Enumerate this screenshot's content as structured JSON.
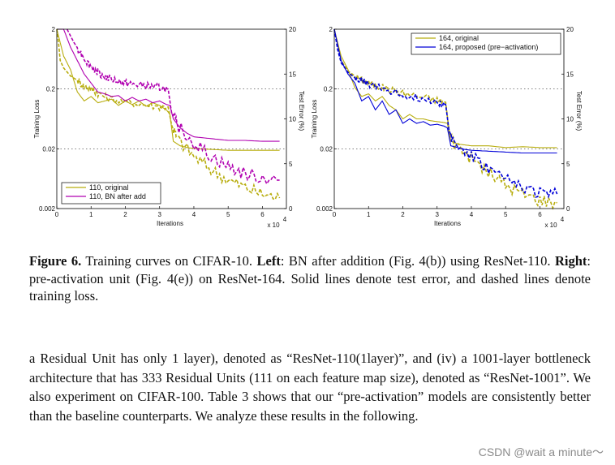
{
  "figure": {
    "caption": {
      "label": "Figure 6.",
      "part1": " Training curves on CIFAR-10. ",
      "left_label": "Left",
      "part2": ": BN after addition (Fig. 4(b)) using ResNet-110. ",
      "right_label": "Right",
      "part3": ": pre-activation unit (Fig. 4(e)) on ResNet-164. Solid lines denote test error, and dashed lines denote training loss."
    }
  },
  "body": {
    "paragraph": "a Residual Unit has only 1 layer), denoted as “ResNet-110(1layer)”, and (iv) a 1001-layer bottleneck architecture that has 333 Residual Units (111 on each feature map size), denoted as “ResNet-1001”. We also experiment on CIFAR-100. Table 3 shows that our “pre-activation” models are consistently better than the baseline counterparts. We analyze these results in the following."
  },
  "watermark": "CSDN @wait a minute～",
  "colors": {
    "original": "#b8ad0e",
    "bn_after_add": "#b000b0",
    "proposed": "#0000d8"
  },
  "chart_data": [
    {
      "type": "line",
      "xlabel": "Iterations",
      "x_multiplier": "x 10",
      "x_multiplier_exp": "4",
      "ylabel_left": "Training Loss",
      "ylabel_right": "Test Error (%)",
      "x_ticks": [
        "0",
        "1",
        "2",
        "3",
        "4",
        "5",
        "6"
      ],
      "xlim": [
        0,
        6.7
      ],
      "y_left_ticks": [
        "2",
        "0.2",
        "0.02",
        "0.002"
      ],
      "y_left_log_range": [
        0.002,
        2
      ],
      "y_right_ticks": [
        "0",
        "5",
        "10",
        "15",
        "20"
      ],
      "ylim_right": [
        0,
        20
      ],
      "grid": "dotted horizontal at 0.2, 0.02",
      "legend": {
        "position": "bottom-left",
        "entries": [
          "110, original",
          "110, BN after add"
        ]
      },
      "series": [
        {
          "name": "110, original",
          "color": "#b8ad0e",
          "kind": "test_error",
          "x": [
            0.0,
            0.2,
            0.4,
            0.6,
            0.8,
            1.0,
            1.2,
            1.4,
            1.6,
            1.8,
            2.0,
            2.2,
            2.4,
            2.6,
            2.8,
            3.0,
            3.2,
            3.3,
            3.4,
            3.6,
            3.8,
            4.0,
            4.5,
            5.0,
            5.5,
            6.0,
            6.5
          ],
          "y": [
            20.0,
            17.0,
            15.5,
            13.0,
            12.0,
            12.5,
            11.8,
            12.0,
            12.2,
            11.5,
            12.0,
            11.6,
            12.0,
            11.4,
            11.8,
            11.5,
            11.0,
            10.5,
            7.5,
            7.0,
            6.8,
            6.7,
            6.6,
            6.5,
            6.5,
            6.5,
            6.5
          ]
        },
        {
          "name": "110, original",
          "color": "#b8ad0e",
          "kind": "training_loss",
          "x": [
            0.0,
            0.05,
            0.1,
            0.2,
            0.4,
            0.6,
            0.8,
            1.0,
            1.2,
            1.5,
            2.0,
            2.5,
            3.0,
            3.25,
            3.35,
            3.5,
            4.0,
            4.5,
            5.0,
            5.5,
            6.0,
            6.5
          ],
          "y": [
            2.0,
            1.2,
            0.6,
            0.45,
            0.33,
            0.28,
            0.22,
            0.2,
            0.17,
            0.14,
            0.12,
            0.11,
            0.1,
            0.1,
            0.05,
            0.03,
            0.015,
            0.009,
            0.006,
            0.0045,
            0.0035,
            0.003
          ]
        },
        {
          "name": "110, BN after add",
          "color": "#b000b0",
          "kind": "test_error",
          "x": [
            0.0,
            0.2,
            0.4,
            0.6,
            0.8,
            1.0,
            1.2,
            1.4,
            1.6,
            1.8,
            2.0,
            2.2,
            2.4,
            2.6,
            2.8,
            3.0,
            3.2,
            3.3,
            3.4,
            3.6,
            3.8,
            4.0,
            4.5,
            5.0,
            5.5,
            6.0,
            6.5
          ],
          "y": [
            20.0,
            20.0,
            18.0,
            16.5,
            15.0,
            14.0,
            13.0,
            12.8,
            12.5,
            12.6,
            12.0,
            12.4,
            12.0,
            12.2,
            11.8,
            12.0,
            11.6,
            11.5,
            10.0,
            9.0,
            8.4,
            8.0,
            7.8,
            7.6,
            7.6,
            7.5,
            7.5
          ]
        },
        {
          "name": "110, BN after add",
          "color": "#b000b0",
          "kind": "training_loss",
          "x": [
            0.3,
            0.5,
            0.7,
            0.9,
            1.1,
            1.3,
            1.5,
            1.8,
            2.0,
            2.2,
            2.5,
            2.8,
            3.0,
            3.25,
            3.35,
            3.5,
            4.0,
            4.5,
            5.0,
            5.5,
            6.0,
            6.5
          ],
          "y": [
            2.0,
            1.2,
            0.8,
            0.55,
            0.42,
            0.35,
            0.3,
            0.27,
            0.25,
            0.24,
            0.23,
            0.22,
            0.21,
            0.2,
            0.08,
            0.05,
            0.025,
            0.015,
            0.01,
            0.0075,
            0.0065,
            0.006
          ]
        }
      ]
    },
    {
      "type": "line",
      "xlabel": "Iterations",
      "x_multiplier": "x 10",
      "x_multiplier_exp": "4",
      "ylabel_left": "Training Loss",
      "ylabel_right": "Test Error (%)",
      "x_ticks": [
        "0",
        "1",
        "2",
        "3",
        "4",
        "5",
        "6"
      ],
      "xlim": [
        0,
        6.7
      ],
      "y_left_ticks": [
        "2",
        "0.2",
        "0.02",
        "0.002"
      ],
      "y_left_log_range": [
        0.002,
        2
      ],
      "y_right_ticks": [
        "0",
        "5",
        "10",
        "15",
        "20"
      ],
      "ylim_right": [
        0,
        20
      ],
      "grid": "dotted horizontal at 0.2, 0.02",
      "legend": {
        "position": "top-right",
        "entries": [
          "164, original",
          "164, proposed (pre−activation)"
        ]
      },
      "series": [
        {
          "name": "164, original",
          "color": "#b8ad0e",
          "kind": "test_error",
          "x": [
            0.0,
            0.2,
            0.4,
            0.6,
            0.8,
            1.0,
            1.2,
            1.4,
            1.6,
            1.8,
            2.0,
            2.2,
            2.4,
            2.6,
            2.8,
            3.0,
            3.2,
            3.3,
            3.4,
            3.6,
            3.8,
            4.0,
            4.5,
            5.0,
            5.5,
            6.0,
            6.5
          ],
          "y": [
            20.0,
            17.0,
            15.5,
            13.5,
            12.5,
            12.8,
            12.0,
            12.5,
            11.5,
            11.0,
            10.0,
            10.5,
            10.0,
            10.0,
            9.8,
            9.7,
            9.6,
            9.5,
            7.5,
            7.2,
            7.1,
            7.0,
            7.0,
            6.8,
            6.9,
            6.8,
            6.8
          ]
        },
        {
          "name": "164, original",
          "color": "#b8ad0e",
          "kind": "training_loss",
          "x": [
            0.0,
            0.1,
            0.2,
            0.4,
            0.6,
            0.8,
            1.0,
            1.3,
            1.6,
            2.0,
            2.5,
            3.0,
            3.25,
            3.35,
            3.5,
            4.0,
            4.5,
            5.0,
            5.5,
            6.0,
            6.5
          ],
          "y": [
            2.0,
            1.0,
            0.6,
            0.4,
            0.33,
            0.28,
            0.25,
            0.22,
            0.2,
            0.17,
            0.15,
            0.13,
            0.12,
            0.04,
            0.025,
            0.014,
            0.008,
            0.005,
            0.0035,
            0.0028,
            0.0025
          ]
        },
        {
          "name": "164, proposed (pre−activation)",
          "color": "#0000d8",
          "kind": "test_error",
          "x": [
            0.0,
            0.2,
            0.4,
            0.6,
            0.8,
            1.0,
            1.2,
            1.4,
            1.6,
            1.8,
            2.0,
            2.2,
            2.4,
            2.6,
            2.8,
            3.0,
            3.2,
            3.3,
            3.4,
            3.6,
            3.8,
            4.0,
            4.5,
            5.0,
            5.5,
            6.0,
            6.5
          ],
          "y": [
            20.0,
            16.5,
            15.0,
            14.0,
            12.0,
            12.5,
            11.0,
            12.0,
            10.5,
            11.0,
            9.5,
            10.0,
            9.5,
            9.7,
            9.3,
            9.4,
            9.2,
            9.0,
            7.0,
            6.8,
            6.6,
            6.5,
            6.4,
            6.3,
            6.2,
            6.2,
            6.2
          ]
        },
        {
          "name": "164, proposed (pre−activation)",
          "color": "#0000d8",
          "kind": "training_loss",
          "x": [
            0.0,
            0.1,
            0.2,
            0.4,
            0.6,
            0.8,
            1.0,
            1.3,
            1.6,
            2.0,
            2.5,
            3.0,
            3.25,
            3.35,
            3.5,
            4.0,
            4.5,
            5.0,
            5.5,
            6.0,
            6.5
          ],
          "y": [
            2.0,
            0.9,
            0.55,
            0.38,
            0.31,
            0.27,
            0.24,
            0.21,
            0.19,
            0.16,
            0.14,
            0.12,
            0.11,
            0.04,
            0.025,
            0.015,
            0.009,
            0.006,
            0.0045,
            0.0038,
            0.0035
          ]
        }
      ]
    }
  ]
}
